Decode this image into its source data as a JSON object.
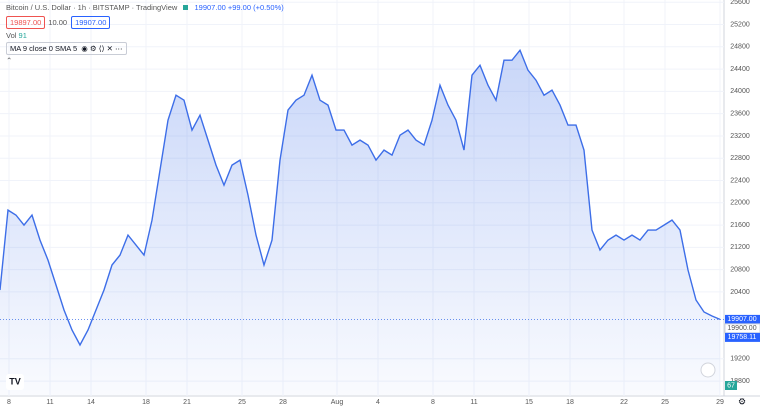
{
  "header": {
    "symbol": "Bitcoin / U.S. Dollar · 1h · BITSTAMP · TradingView",
    "quote": "19907.00 +99.00 (+0.50%)",
    "bid": "19897.00",
    "spread": "10.00",
    "ask": "19907.00",
    "vol_label": "Vol",
    "vol_value": "91",
    "indicator": "MA 9 close 0 SMA 5"
  },
  "chart_data": {
    "type": "area",
    "color": "#3d6ee8",
    "values": [
      20434,
      21869,
      21779,
      21600,
      21779,
      21331,
      20972,
      20524,
      20075,
      19717,
      19448,
      19717,
      20075,
      20434,
      20883,
      21062,
      21421,
      21241,
      21062,
      21690,
      22587,
      23483,
      23932,
      23842,
      23304,
      23573,
      23125,
      22676,
      22318,
      22676,
      22766,
      22138,
      21421,
      20883,
      21331,
      22766,
      23663,
      23842,
      23932,
      24291,
      23842,
      23753,
      23304,
      23304,
      23035,
      23125,
      23035,
      22766,
      22945,
      22856,
      23214,
      23304,
      23125,
      23035,
      23483,
      24111,
      23753,
      23483,
      22945,
      24291,
      24470,
      24111,
      23842,
      24560,
      24560,
      24739,
      24380,
      24201,
      23932,
      24022,
      23753,
      23394,
      23394,
      22945,
      21510,
      21152,
      21331,
      21421,
      21331,
      21421,
      21331,
      21510,
      21510,
      21600,
      21690,
      21510,
      20793,
      20255,
      20040,
      19968,
      19907
    ],
    "xticks": [
      "8",
      "11",
      "14",
      "18",
      "21",
      "25",
      "28",
      "Aug",
      "4",
      "8",
      "11",
      "15",
      "18",
      "22",
      "25",
      "29"
    ],
    "ylim": [
      18550,
      25640
    ],
    "yticks": [
      18800,
      19200,
      20400,
      20800,
      21200,
      21600,
      22000,
      22400,
      22800,
      23200,
      23600,
      24000,
      24400,
      24800,
      25200,
      25600
    ],
    "grid": true,
    "price_labels": [
      {
        "value": 19907,
        "label": "19907.00"
      },
      {
        "value": 19900,
        "label": "19900.00"
      },
      {
        "value": 19758.11,
        "label": "19758.11"
      }
    ],
    "volume_label": "67"
  }
}
